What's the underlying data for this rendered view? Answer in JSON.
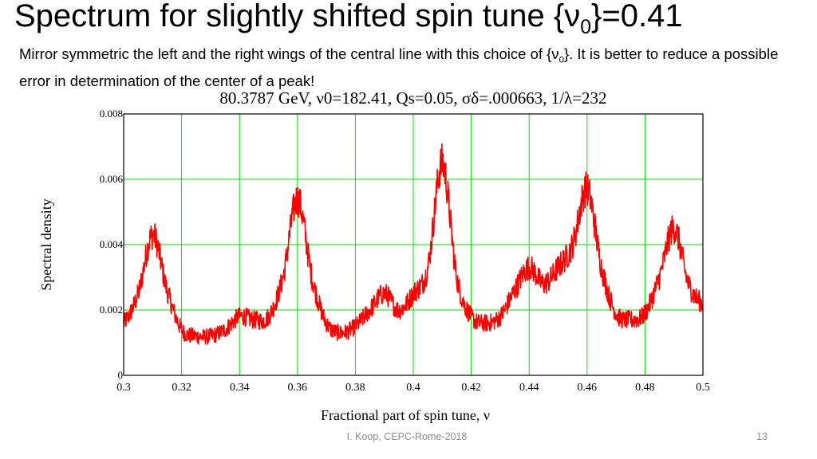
{
  "slide": {
    "title_pre": "Spectrum for slightly shifted spin tune {ν",
    "title_sub": "0",
    "title_post": "}=0.41",
    "subtitle_pre": "Mirror symmetric the left and the right wings of the central line with this choice of {ν",
    "subtitle_sub": "0",
    "subtitle_post": "}.  It is better  to reduce a possible error in determination of the center of a peak!",
    "footer": "I. Koop, CEPC-Rome-2018",
    "page_number": "13"
  },
  "colors": {
    "line": "#ff0000",
    "grid": "#00e000",
    "frame": "#000000"
  },
  "chart_data": {
    "type": "line",
    "title": "80.3787 GeV, ν0=182.41, Qs=0.05, σδ=.000663, 1/λ=232",
    "xlabel": "Fractional part of spin tune, ν",
    "ylabel": "Spectral density",
    "xlim": [
      0.3,
      0.5
    ],
    "ylim": [
      0,
      0.008
    ],
    "x_ticks": [
      "0.3",
      "0.32",
      "0.34",
      "0.36",
      "0.38",
      "0.4",
      "0.42",
      "0.44",
      "0.46",
      "0.48",
      "0.5"
    ],
    "y_ticks": [
      "0",
      "0.002",
      "0.004",
      "0.006",
      "0.008"
    ],
    "grid": true,
    "x": [
      0.3,
      0.305,
      0.31,
      0.315,
      0.32,
      0.325,
      0.33,
      0.335,
      0.34,
      0.345,
      0.35,
      0.355,
      0.36,
      0.365,
      0.37,
      0.375,
      0.38,
      0.385,
      0.39,
      0.395,
      0.4,
      0.405,
      0.41,
      0.415,
      0.42,
      0.425,
      0.43,
      0.435,
      0.44,
      0.445,
      0.45,
      0.455,
      0.46,
      0.465,
      0.47,
      0.475,
      0.48,
      0.485,
      0.49,
      0.495,
      0.5
    ],
    "y": [
      0.0016,
      0.0025,
      0.0043,
      0.0026,
      0.0014,
      0.0012,
      0.0012,
      0.0014,
      0.0018,
      0.0017,
      0.0018,
      0.003,
      0.0054,
      0.003,
      0.0016,
      0.0013,
      0.0015,
      0.002,
      0.0025,
      0.002,
      0.0025,
      0.0033,
      0.0065,
      0.003,
      0.0018,
      0.0016,
      0.0018,
      0.0026,
      0.0033,
      0.0028,
      0.0033,
      0.004,
      0.0057,
      0.0033,
      0.0019,
      0.0017,
      0.0019,
      0.003,
      0.0045,
      0.0028,
      0.0022
    ]
  }
}
